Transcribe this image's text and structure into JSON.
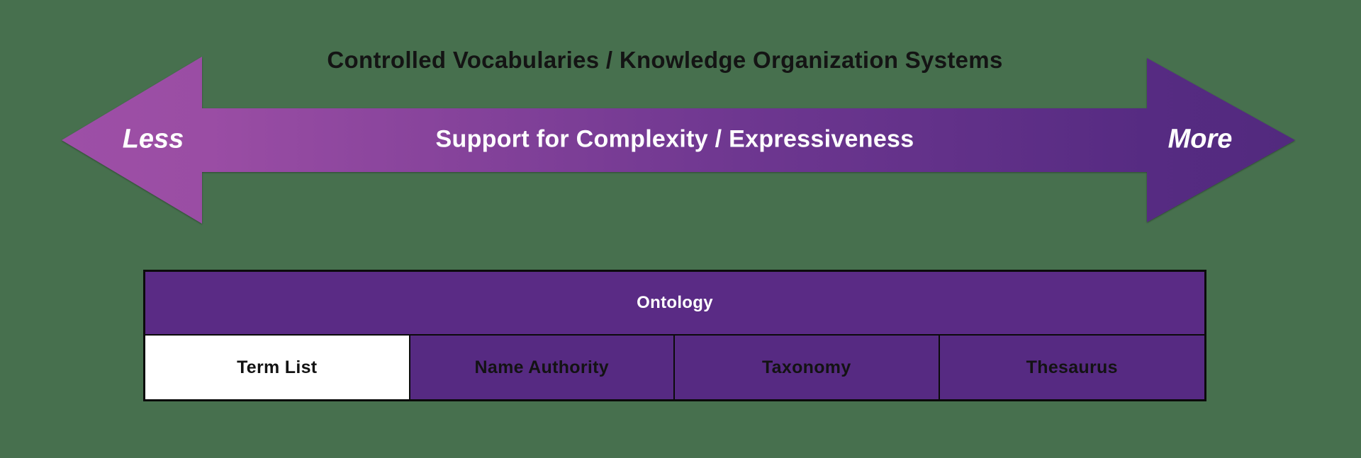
{
  "background_color": "#47704E",
  "banner": {
    "title": "Controlled Vocabularies / Knowledge Organization Systems",
    "arrow": {
      "left_label": "Less",
      "right_label": "More",
      "center_label": "Support for Complexity / Expressiveness",
      "gradient_start_color": "#9D4FA6",
      "gradient_mid_color": "#6E3790",
      "gradient_end_color": "#522A7E",
      "label_color": "#FFFFFF"
    }
  },
  "table": {
    "header": {
      "label": "Ontology",
      "bg_color": "#5A2B85",
      "text_color": "#FFFFFF"
    },
    "cells": [
      {
        "label": "Term List",
        "bg_color": "#FFFFFF",
        "text_color": "#131313",
        "highlighted": true
      },
      {
        "label": "Name Authority",
        "bg_color": "#562A82",
        "text_color": "#131313",
        "highlighted": false
      },
      {
        "label": "Taxonomy",
        "bg_color": "#562A82",
        "text_color": "#131313",
        "highlighted": false
      },
      {
        "label": "Thesaurus",
        "bg_color": "#562A82",
        "text_color": "#131313",
        "highlighted": false
      }
    ],
    "border_color": "#0B0B0B"
  }
}
